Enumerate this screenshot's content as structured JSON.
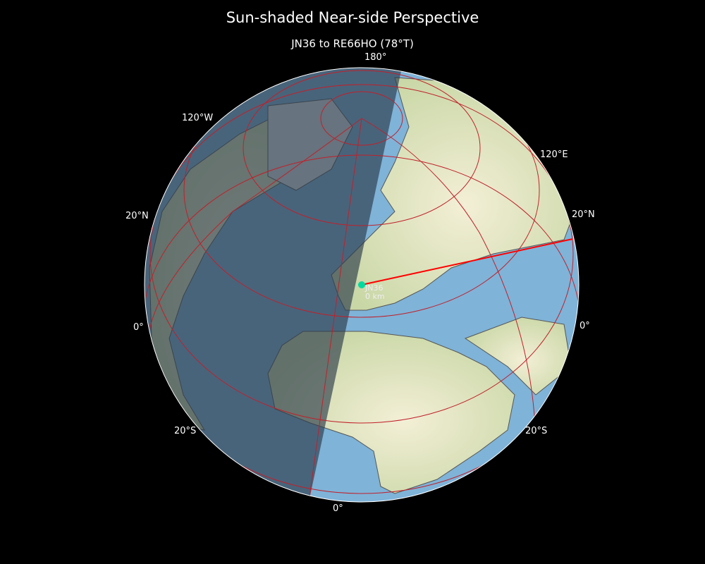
{
  "title": "Sun-shaded Near-side Perspective",
  "subtitle": "JN36 to RE66HO (78°T)",
  "graticule_labels": {
    "top": "180°",
    "upper_left": "120°W",
    "upper_right": "120°E",
    "left_20n": "20°N",
    "right_20n": "20°N",
    "left_0": "0°",
    "right_0": "0°",
    "left_20s": "20°S",
    "right_20s": "20°S",
    "bottom": "0°"
  },
  "marker": {
    "label": "JN36",
    "distance": "0 km",
    "color": "#00d9a0"
  },
  "path": {
    "from": "JN36",
    "to": "RE66HO",
    "bearing_deg": 78,
    "color": "#ff0000"
  },
  "colors": {
    "graticule": "#c0202a",
    "ocean": "#7fb3d8",
    "land": "#e7e6bd",
    "night": "#2b3a4a"
  }
}
